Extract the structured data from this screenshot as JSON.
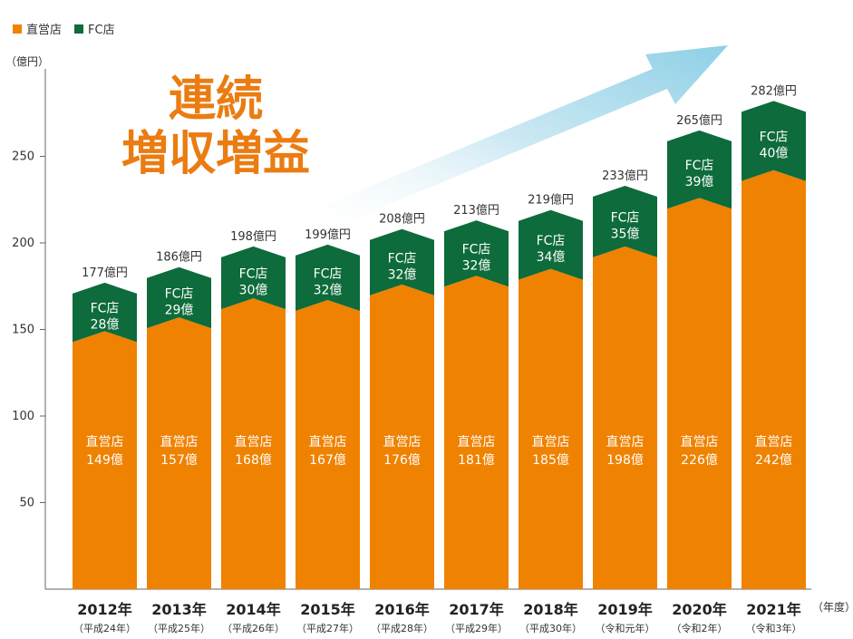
{
  "legend": [
    {
      "label": "直営店",
      "color": "#ef8200"
    },
    {
      "label": "FC店",
      "color": "#0e6b3b"
    }
  ],
  "slogan": {
    "line1": "連続",
    "line2": "増収増益"
  },
  "chart_data": {
    "type": "bar",
    "stacked": true,
    "ylabel": "（億円）",
    "xlabel": "（年度）",
    "ylim": [
      0,
      300
    ],
    "yticks": [
      50,
      100,
      150,
      200,
      250
    ],
    "categories": [
      "2012年",
      "2013年",
      "2014年",
      "2015年",
      "2016年",
      "2017年",
      "2018年",
      "2019年",
      "2020年",
      "2021年"
    ],
    "sublabels": [
      "（平成24年）",
      "（平成25年）",
      "（平成26年）",
      "（平成27年）",
      "（平成28年）",
      "（平成29年）",
      "（平成30年）",
      "（令和元年）",
      "（令和2年）",
      "（令和3年）"
    ],
    "series": [
      {
        "name": "直営店",
        "color": "#ef8200",
        "values": [
          149,
          157,
          168,
          167,
          176,
          181,
          185,
          198,
          226,
          242
        ],
        "labels": [
          "149億",
          "157億",
          "168億",
          "167億",
          "176億",
          "181億",
          "185億",
          "198億",
          "226億",
          "242億"
        ]
      },
      {
        "name": "FC店",
        "color": "#0e6b3b",
        "values": [
          28,
          29,
          30,
          32,
          32,
          32,
          34,
          35,
          39,
          40
        ],
        "labels": [
          "28億",
          "29億",
          "30億",
          "32億",
          "32億",
          "32億",
          "34億",
          "35億",
          "39億",
          "40億"
        ]
      }
    ],
    "totals": [
      "177億円",
      "186億円",
      "198億円",
      "199億円",
      "208億円",
      "213億円",
      "219億円",
      "233億円",
      "265億円",
      "282億円"
    ]
  }
}
